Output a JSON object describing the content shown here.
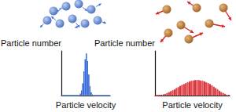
{
  "chart_data": [
    {
      "type": "bar",
      "xlabel": "Particle velocity",
      "ylabel": "Particle number",
      "categories": [
        null,
        null,
        null,
        null,
        null,
        null,
        null,
        null,
        null,
        null,
        null,
        null,
        null,
        null,
        null,
        null,
        null,
        null,
        null,
        null,
        null,
        null,
        null,
        null,
        null,
        null,
        null,
        null,
        null,
        null,
        null,
        null,
        null,
        null,
        null,
        null,
        null,
        null,
        null,
        null
      ],
      "values": [
        0,
        0,
        0,
        0,
        0,
        0,
        0,
        0,
        0,
        0,
        0,
        0,
        0,
        0,
        2,
        5,
        12,
        28,
        55,
        82,
        95,
        78,
        48,
        22,
        8,
        3,
        0,
        0,
        0,
        0,
        0,
        0,
        0,
        0,
        0,
        0,
        0,
        0,
        0,
        0
      ],
      "color": "#2f63d6",
      "ylim": [
        0,
        100
      ],
      "tick_labels": false,
      "grid": false
    },
    {
      "type": "bar",
      "xlabel": "Particle velocity",
      "ylabel": "Particle number",
      "categories": [
        null,
        null,
        null,
        null,
        null,
        null,
        null,
        null,
        null,
        null,
        null,
        null,
        null,
        null,
        null,
        null,
        null,
        null,
        null,
        null,
        null,
        null,
        null,
        null,
        null,
        null,
        null,
        null,
        null,
        null,
        null,
        null,
        null,
        null,
        null,
        null,
        null,
        null,
        null,
        null
      ],
      "values": [
        0,
        0,
        1,
        2,
        3,
        4,
        6,
        8,
        10,
        12,
        14,
        17,
        19,
        22,
        24,
        26,
        28,
        30,
        32,
        33,
        34,
        35,
        35,
        35,
        34,
        33,
        32,
        30,
        28,
        26,
        23,
        20,
        17,
        14,
        11,
        8,
        6,
        4,
        2,
        1
      ],
      "color": "#d9272e",
      "ylim": [
        0,
        100
      ],
      "tick_labels": false,
      "grid": false
    }
  ]
}
